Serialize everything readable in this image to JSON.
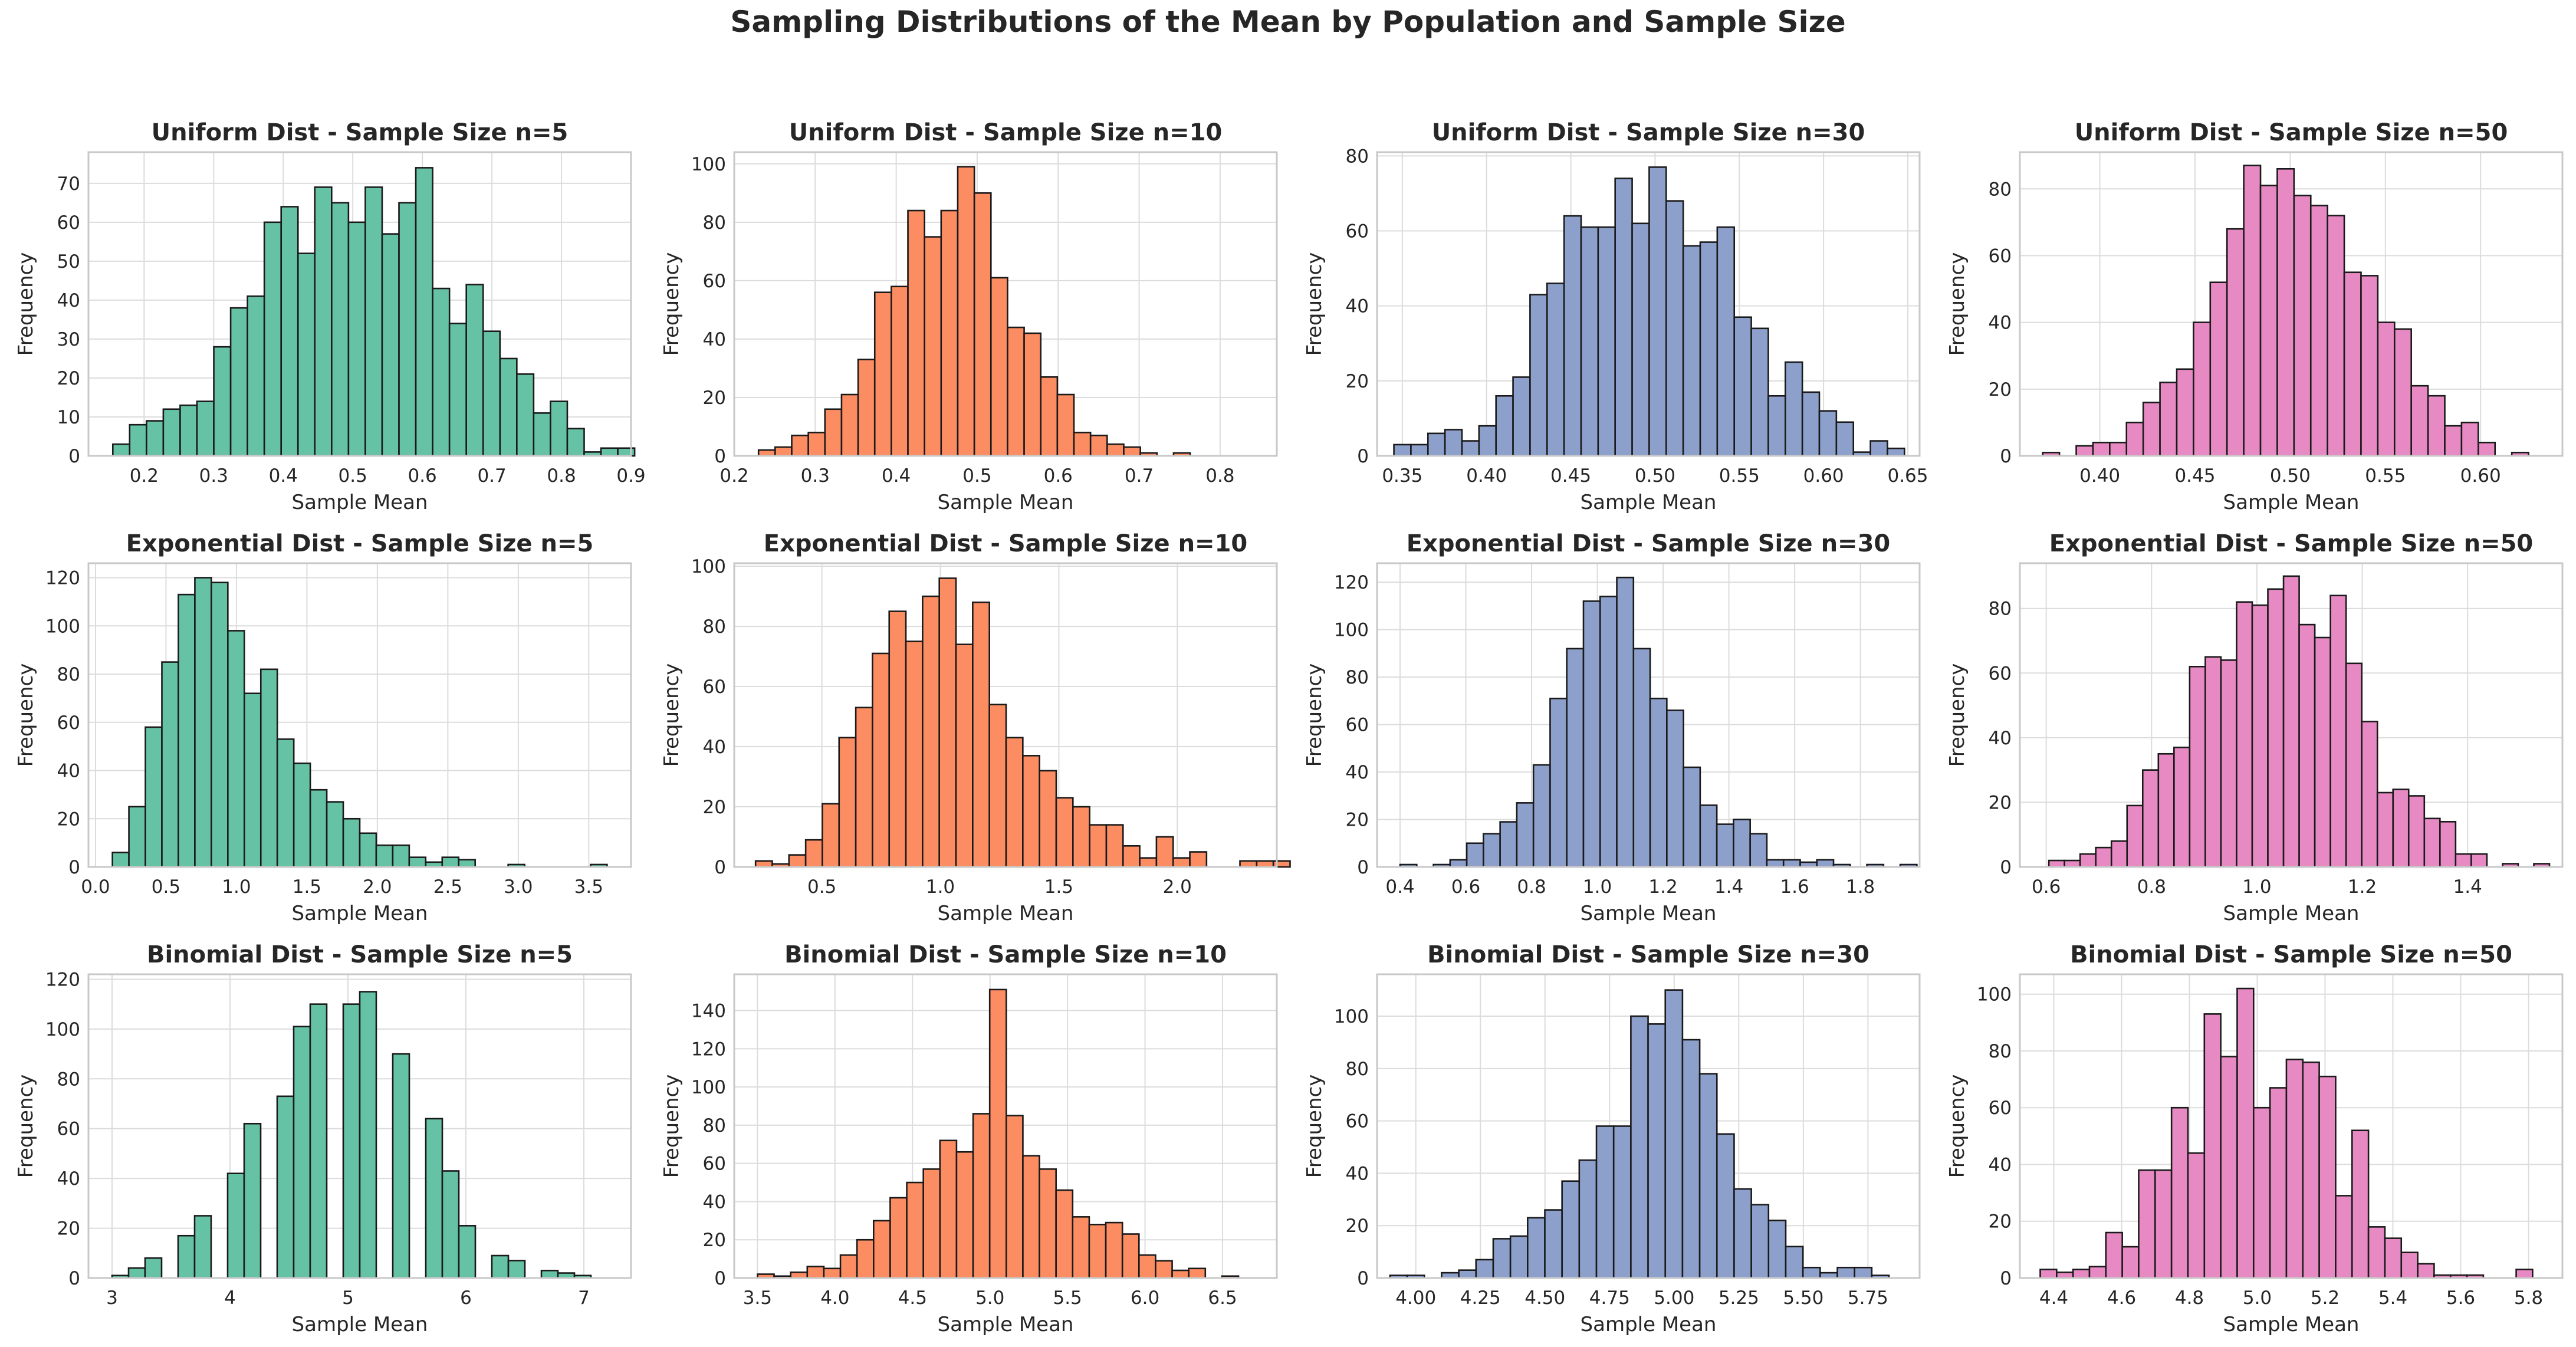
{
  "figure": {
    "title": "Sampling Distributions of the Mean by Population and Sample Size"
  },
  "colors": {
    "n5": "#66c2a5",
    "n10": "#fc8d62",
    "n30": "#8da0cb",
    "n50": "#e78ac3",
    "edge": "#1a1a1a",
    "grid": "#dcdcdc",
    "frame": "#c8c8c8"
  },
  "chart_data": [
    {
      "type": "bar",
      "title": "Uniform Dist - Sample Size n=5",
      "xlabel": "Sample Mean",
      "ylabel": "Frequency",
      "xlim": [
        0.12,
        0.9
      ],
      "ylim": [
        0,
        78
      ],
      "xticks": [
        0.2,
        0.3,
        0.4,
        0.5,
        0.6,
        0.7,
        0.8,
        0.9
      ],
      "yticks": [
        0,
        10,
        20,
        30,
        40,
        50,
        60,
        70
      ],
      "color": "n5",
      "bin_start": 0.155,
      "bin_width": 0.0242,
      "values": [
        3,
        8,
        9,
        12,
        13,
        14,
        28,
        38,
        41,
        60,
        64,
        52,
        69,
        65,
        60,
        69,
        57,
        65,
        74,
        43,
        34,
        44,
        32,
        25,
        21,
        11,
        14,
        7,
        1,
        2,
        2
      ]
    },
    {
      "type": "bar",
      "title": "Uniform Dist - Sample Size n=10",
      "xlabel": "Sample Mean",
      "ylabel": "Frequency",
      "xlim": [
        0.2,
        0.87
      ],
      "ylim": [
        0,
        104
      ],
      "xticks": [
        0.2,
        0.3,
        0.4,
        0.5,
        0.6,
        0.7,
        0.8
      ],
      "yticks": [
        0,
        20,
        40,
        60,
        80,
        100
      ],
      "color": "n10",
      "bin_start": 0.23,
      "bin_width": 0.0205,
      "values": [
        2,
        3,
        7,
        8,
        16,
        21,
        33,
        56,
        58,
        84,
        75,
        84,
        99,
        90,
        61,
        44,
        42,
        27,
        21,
        8,
        7,
        4,
        3,
        1,
        0,
        1
      ]
    },
    {
      "type": "bar",
      "title": "Uniform Dist - Sample Size n=30",
      "xlabel": "Sample Mean",
      "ylabel": "Frequency",
      "xlim": [
        0.335,
        0.657
      ],
      "ylim": [
        0,
        81
      ],
      "xticks": [
        0.35,
        0.4,
        0.45,
        0.5,
        0.55,
        0.6,
        0.65
      ],
      "yticks": [
        0,
        20,
        40,
        60,
        80
      ],
      "color": "n30",
      "bin_start": 0.345,
      "bin_width": 0.0101,
      "values": [
        3,
        3,
        6,
        7,
        4,
        8,
        16,
        21,
        43,
        46,
        64,
        61,
        61,
        74,
        62,
        77,
        68,
        56,
        57,
        61,
        37,
        34,
        16,
        25,
        17,
        12,
        9,
        1,
        4,
        2
      ]
    },
    {
      "type": "bar",
      "title": "Uniform Dist - Sample Size n=50",
      "xlabel": "Sample Mean",
      "ylabel": "Frequency",
      "xlim": [
        0.358,
        0.643
      ],
      "ylim": [
        0,
        91
      ],
      "xticks": [
        0.4,
        0.45,
        0.5,
        0.55,
        0.6
      ],
      "yticks": [
        0,
        20,
        40,
        60,
        80
      ],
      "color": "n50",
      "bin_start": 0.37,
      "bin_width": 0.0088,
      "values": [
        1,
        0,
        3,
        4,
        4,
        10,
        16,
        22,
        26,
        40,
        52,
        68,
        87,
        81,
        86,
        78,
        75,
        72,
        55,
        54,
        40,
        38,
        21,
        18,
        9,
        10,
        4,
        0,
        1
      ]
    },
    {
      "type": "bar",
      "title": "Exponential Dist - Sample Size n=5",
      "xlabel": "Sample Mean",
      "ylabel": "Frequency",
      "xlim": [
        -0.05,
        3.8
      ],
      "ylim": [
        0,
        126
      ],
      "xticks": [
        0.0,
        0.5,
        1.0,
        1.5,
        2.0,
        2.5,
        3.0,
        3.5
      ],
      "yticks": [
        0,
        20,
        40,
        60,
        80,
        100,
        120
      ],
      "color": "n5",
      "bin_start": 0.12,
      "bin_width": 0.117,
      "values": [
        6,
        25,
        58,
        85,
        113,
        120,
        118,
        98,
        72,
        82,
        53,
        43,
        32,
        27,
        20,
        14,
        9,
        9,
        4,
        2,
        4,
        3,
        0,
        0,
        1,
        0,
        0,
        0,
        0,
        1
      ]
    },
    {
      "type": "bar",
      "title": "Exponential Dist - Sample Size n=10",
      "xlabel": "Sample Mean",
      "ylabel": "Frequency",
      "xlim": [
        0.13,
        2.42
      ],
      "ylim": [
        0,
        101
      ],
      "xticks": [
        0.5,
        1.0,
        1.5,
        2.0
      ],
      "yticks": [
        0,
        20,
        40,
        60,
        80,
        100
      ],
      "color": "n10",
      "bin_start": 0.22,
      "bin_width": 0.0705,
      "values": [
        2,
        1,
        4,
        9,
        21,
        43,
        53,
        71,
        85,
        75,
        90,
        96,
        74,
        88,
        54,
        43,
        37,
        32,
        23,
        20,
        14,
        14,
        7,
        3,
        10,
        3,
        5,
        0,
        0,
        2,
        2,
        2
      ]
    },
    {
      "type": "bar",
      "title": "Exponential Dist - Sample Size n=30",
      "xlabel": "Sample Mean",
      "ylabel": "Frequency",
      "xlim": [
        0.33,
        1.98
      ],
      "ylim": [
        0,
        128
      ],
      "xticks": [
        0.4,
        0.6,
        0.8,
        1.0,
        1.2,
        1.4,
        1.6,
        1.8
      ],
      "yticks": [
        0,
        20,
        40,
        60,
        80,
        100,
        120
      ],
      "color": "n30",
      "bin_start": 0.4,
      "bin_width": 0.0507,
      "values": [
        1,
        0,
        1,
        3,
        10,
        14,
        19,
        27,
        43,
        71,
        92,
        112,
        114,
        122,
        92,
        71,
        66,
        42,
        26,
        18,
        20,
        14,
        3,
        3,
        2,
        3,
        1,
        0,
        1,
        0,
        1
      ]
    },
    {
      "type": "bar",
      "title": "Exponential Dist - Sample Size n=50",
      "xlabel": "Sample Mean",
      "ylabel": "Frequency",
      "xlim": [
        0.55,
        1.58
      ],
      "ylim": [
        0,
        94
      ],
      "xticks": [
        0.6,
        0.8,
        1.0,
        1.2,
        1.4
      ],
      "yticks": [
        0,
        20,
        40,
        60,
        80
      ],
      "color": "n50",
      "bin_start": 0.605,
      "bin_width": 0.0297,
      "values": [
        2,
        2,
        4,
        6,
        8,
        19,
        30,
        35,
        37,
        62,
        65,
        64,
        82,
        81,
        86,
        90,
        75,
        71,
        84,
        63,
        45,
        23,
        24,
        22,
        15,
        14,
        4,
        4,
        0,
        1,
        0,
        1
      ]
    },
    {
      "type": "bar",
      "title": "Binomial Dist - Sample Size n=5",
      "xlabel": "Sample Mean",
      "ylabel": "Frequency",
      "xlim": [
        2.8,
        7.4
      ],
      "ylim": [
        0,
        122
      ],
      "xticks": [
        3,
        4,
        5,
        6,
        7
      ],
      "yticks": [
        0,
        20,
        40,
        60,
        80,
        100,
        120
      ],
      "color": "n5",
      "bin_start": 3.0,
      "bin_width": 0.14,
      "values": [
        1,
        4,
        8,
        0,
        17,
        25,
        0,
        42,
        62,
        0,
        73,
        101,
        110,
        0,
        110,
        115,
        0,
        90,
        0,
        64,
        43,
        21,
        0,
        9,
        7,
        0,
        3,
        2,
        1
      ]
    },
    {
      "type": "bar",
      "title": "Binomial Dist - Sample Size n=10",
      "xlabel": "Sample Mean",
      "ylabel": "Frequency",
      "xlim": [
        3.35,
        6.85
      ],
      "ylim": [
        0,
        159
      ],
      "xticks": [
        3.5,
        4.0,
        4.5,
        5.0,
        5.5,
        6.0,
        6.5
      ],
      "yticks": [
        0,
        20,
        40,
        60,
        80,
        100,
        120,
        140
      ],
      "color": "n10",
      "bin_start": 3.5,
      "bin_width": 0.107,
      "values": [
        2,
        1,
        3,
        6,
        5,
        12,
        20,
        30,
        42,
        50,
        57,
        72,
        66,
        86,
        151,
        85,
        64,
        57,
        46,
        32,
        28,
        29,
        23,
        12,
        9,
        4,
        5,
        0,
        1
      ]
    },
    {
      "type": "bar",
      "title": "Binomial Dist - Sample Size n=30",
      "xlabel": "Sample Mean",
      "ylabel": "Frequency",
      "xlim": [
        3.85,
        5.95
      ],
      "ylim": [
        0,
        116
      ],
      "xticks": [
        4.0,
        4.25,
        4.5,
        4.75,
        5.0,
        5.25,
        5.5,
        5.75
      ],
      "yticks": [
        0,
        20,
        40,
        60,
        80,
        100
      ],
      "color": "n30",
      "bin_start": 3.9,
      "bin_width": 0.0666,
      "values": [
        1,
        1,
        0,
        2,
        3,
        7,
        15,
        16,
        23,
        26,
        37,
        45,
        58,
        58,
        100,
        97,
        110,
        91,
        78,
        55,
        34,
        28,
        22,
        12,
        4,
        2,
        4,
        4,
        1
      ]
    },
    {
      "type": "bar",
      "title": "Binomial Dist - Sample Size n=50",
      "xlabel": "Sample Mean",
      "ylabel": "Frequency",
      "xlim": [
        4.3,
        5.9
      ],
      "ylim": [
        0,
        107
      ],
      "xticks": [
        4.4,
        4.6,
        4.8,
        5.0,
        5.2,
        5.4,
        5.6,
        5.8
      ],
      "yticks": [
        0,
        20,
        40,
        60,
        80,
        100
      ],
      "color": "n50",
      "bin_start": 4.36,
      "bin_width": 0.0484,
      "values": [
        3,
        2,
        3,
        4,
        16,
        11,
        38,
        38,
        60,
        44,
        93,
        78,
        102,
        60,
        67,
        77,
        76,
        71,
        29,
        52,
        18,
        14,
        9,
        5,
        1,
        1,
        1,
        0,
        0,
        3
      ]
    }
  ]
}
